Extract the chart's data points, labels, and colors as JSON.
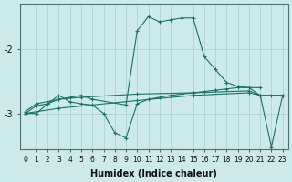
{
  "xlabel": "Humidex (Indice chaleur)",
  "bg_color": "#cceaea",
  "line_color": "#1a7068",
  "grid_color": "#a8cccc",
  "xlim": [
    -0.5,
    23.5
  ],
  "ylim": [
    -3.55,
    -1.3
  ],
  "yticks": [
    -3,
    -2
  ],
  "xticks": [
    0,
    1,
    2,
    3,
    4,
    5,
    6,
    7,
    8,
    9,
    10,
    11,
    12,
    13,
    14,
    15,
    16,
    17,
    18,
    19,
    20,
    21,
    22,
    23
  ],
  "lines": [
    {
      "x": [
        0,
        1,
        3,
        5,
        10,
        15,
        20,
        21,
        22,
        23
      ],
      "y": [
        -2.97,
        -2.85,
        -2.78,
        -2.75,
        -2.7,
        -2.68,
        -2.65,
        -2.72,
        -2.72,
        -2.72
      ]
    },
    {
      "x": [
        0,
        1,
        2,
        3,
        4,
        5,
        6,
        7,
        8,
        9,
        10,
        11,
        12,
        13,
        14,
        15,
        16,
        17,
        18,
        19,
        20,
        21,
        22,
        23
      ],
      "y": [
        -3.0,
        -3.0,
        -2.85,
        -2.72,
        -2.82,
        -2.85,
        -2.87,
        -3.0,
        -3.3,
        -3.38,
        -2.85,
        -2.78,
        -2.75,
        -2.72,
        -2.7,
        -2.68,
        -2.66,
        -2.64,
        -2.62,
        -2.6,
        -2.6,
        -2.72,
        -3.52,
        -2.72
      ]
    },
    {
      "x": [
        0,
        1,
        2,
        3,
        4,
        5,
        6,
        9,
        10,
        11,
        12,
        13,
        14,
        15,
        16,
        17,
        18,
        19,
        20,
        21
      ],
      "y": [
        -3.0,
        -2.88,
        -2.85,
        -2.78,
        -2.75,
        -2.72,
        -2.78,
        -2.87,
        -1.72,
        -1.5,
        -1.58,
        -1.55,
        -1.52,
        -1.52,
        -2.12,
        -2.32,
        -2.52,
        -2.58,
        -2.6,
        -2.6
      ]
    },
    {
      "x": [
        0,
        3,
        10,
        15,
        20,
        21,
        23
      ],
      "y": [
        -3.0,
        -2.92,
        -2.8,
        -2.72,
        -2.68,
        -2.72,
        -2.72
      ]
    }
  ]
}
